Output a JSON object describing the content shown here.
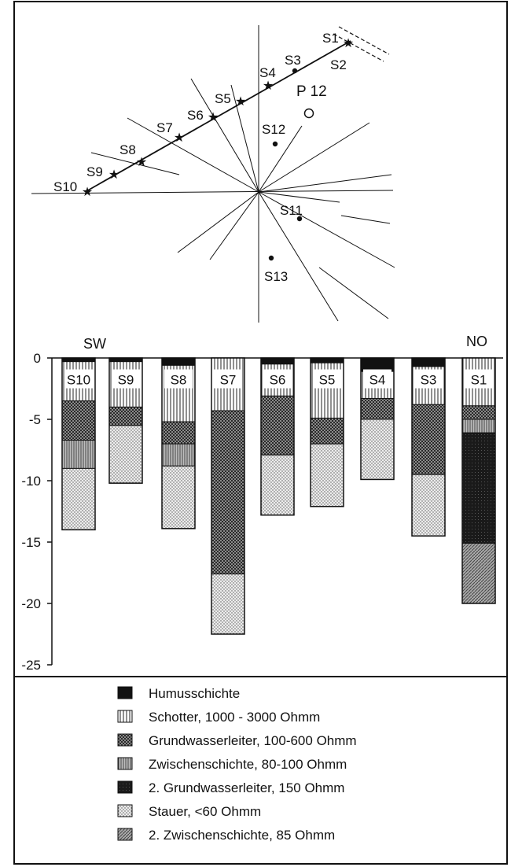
{
  "map": {
    "stations": [
      {
        "label": "S1",
        "marker": "star"
      },
      {
        "label": "S2",
        "marker": "none"
      },
      {
        "label": "S3",
        "marker": "dot"
      },
      {
        "label": "S4",
        "marker": "star"
      },
      {
        "label": "S5",
        "marker": "star"
      },
      {
        "label": "S6",
        "marker": "star"
      },
      {
        "label": "S7",
        "marker": "star"
      },
      {
        "label": "S8",
        "marker": "star"
      },
      {
        "label": "S9",
        "marker": "star"
      },
      {
        "label": "S10",
        "marker": "star"
      },
      {
        "label": "S11",
        "marker": "dot"
      },
      {
        "label": "S12",
        "marker": "dot"
      },
      {
        "label": "S13",
        "marker": "dot"
      }
    ],
    "profile_label": "P 12"
  },
  "chart_data": {
    "type": "bar",
    "direction_left": "SW",
    "direction_right": "NO",
    "yticks": [
      0,
      -5,
      -10,
      -15,
      -20,
      -25
    ],
    "ylim": [
      -25,
      0
    ],
    "columns": [
      {
        "label": "S10",
        "layers": [
          {
            "type": "humus",
            "top": 0,
            "bottom": -0.3
          },
          {
            "type": "schotter",
            "top": -0.3,
            "bottom": -3.5
          },
          {
            "type": "grundwasser",
            "top": -3.5,
            "bottom": -6.7
          },
          {
            "type": "zwischen",
            "top": -6.7,
            "bottom": -9.0
          },
          {
            "type": "stauer",
            "top": -9.0,
            "bottom": -14.0
          }
        ]
      },
      {
        "label": "S9",
        "layers": [
          {
            "type": "humus",
            "top": 0,
            "bottom": -0.3
          },
          {
            "type": "schotter",
            "top": -0.3,
            "bottom": -4.0
          },
          {
            "type": "grundwasser",
            "top": -4.0,
            "bottom": -5.5
          },
          {
            "type": "stauer",
            "top": -5.5,
            "bottom": -10.2
          }
        ]
      },
      {
        "label": "S8",
        "layers": [
          {
            "type": "humus",
            "top": 0,
            "bottom": -0.6
          },
          {
            "type": "schotter",
            "top": -0.6,
            "bottom": -5.2
          },
          {
            "type": "grundwasser",
            "top": -5.2,
            "bottom": -7.0
          },
          {
            "type": "zwischen",
            "top": -7.0,
            "bottom": -8.8
          },
          {
            "type": "stauer",
            "top": -8.8,
            "bottom": -13.9
          }
        ]
      },
      {
        "label": "S7",
        "layers": [
          {
            "type": "schotter",
            "top": 0,
            "bottom": -4.3
          },
          {
            "type": "grundwasser",
            "top": -4.3,
            "bottom": -17.6
          },
          {
            "type": "stauer",
            "top": -17.6,
            "bottom": -22.5
          }
        ]
      },
      {
        "label": "S6",
        "layers": [
          {
            "type": "humus",
            "top": 0,
            "bottom": -0.5
          },
          {
            "type": "schotter",
            "top": -0.5,
            "bottom": -3.1
          },
          {
            "type": "grundwasser",
            "top": -3.1,
            "bottom": -7.9
          },
          {
            "type": "stauer",
            "top": -7.9,
            "bottom": -12.8
          }
        ]
      },
      {
        "label": "S5",
        "layers": [
          {
            "type": "humus",
            "top": 0,
            "bottom": -0.4
          },
          {
            "type": "schotter",
            "top": -0.4,
            "bottom": -4.9
          },
          {
            "type": "grundwasser",
            "top": -4.9,
            "bottom": -7.0
          },
          {
            "type": "stauer",
            "top": -7.0,
            "bottom": -12.1
          }
        ]
      },
      {
        "label": "S4",
        "layers": [
          {
            "type": "humus",
            "top": 0,
            "bottom": -1.1
          },
          {
            "type": "schotter",
            "top": -1.1,
            "bottom": -3.3
          },
          {
            "type": "grundwasser",
            "top": -3.3,
            "bottom": -5.0
          },
          {
            "type": "stauer",
            "top": -5.0,
            "bottom": -9.9
          }
        ]
      },
      {
        "label": "S3",
        "layers": [
          {
            "type": "humus",
            "top": 0,
            "bottom": -0.7
          },
          {
            "type": "schotter",
            "top": -0.7,
            "bottom": -3.8
          },
          {
            "type": "grundwasser",
            "top": -3.8,
            "bottom": -9.5
          },
          {
            "type": "stauer",
            "top": -9.5,
            "bottom": -14.5
          }
        ]
      },
      {
        "label": "S1",
        "layers": [
          {
            "type": "schotter",
            "top": 0,
            "bottom": -3.9
          },
          {
            "type": "grundwasser",
            "top": -3.9,
            "bottom": -5.0
          },
          {
            "type": "zwischen",
            "top": -5.0,
            "bottom": -6.1
          },
          {
            "type": "grundwasser2",
            "top": -6.1,
            "bottom": -15.1
          },
          {
            "type": "zwischen2",
            "top": -15.1,
            "bottom": -20.0
          }
        ]
      }
    ]
  },
  "legend": [
    {
      "type": "humus",
      "label": "Humusschichte"
    },
    {
      "type": "schotter",
      "label": "Schotter, 1000 - 3000 Ohmm"
    },
    {
      "type": "grundwasser",
      "label": "Grundwasserleiter, 100-600 Ohmm"
    },
    {
      "type": "zwischen",
      "label": "Zwischenschichte, 80-100 Ohmm"
    },
    {
      "type": "grundwasser2",
      "label": "2. Grundwasserleiter, 150 Ohmm"
    },
    {
      "type": "stauer",
      "label": "Stauer, <60 Ohmm"
    },
    {
      "type": "zwischen2",
      "label": "2. Zwischenschichte, 85 Ohmm"
    }
  ]
}
